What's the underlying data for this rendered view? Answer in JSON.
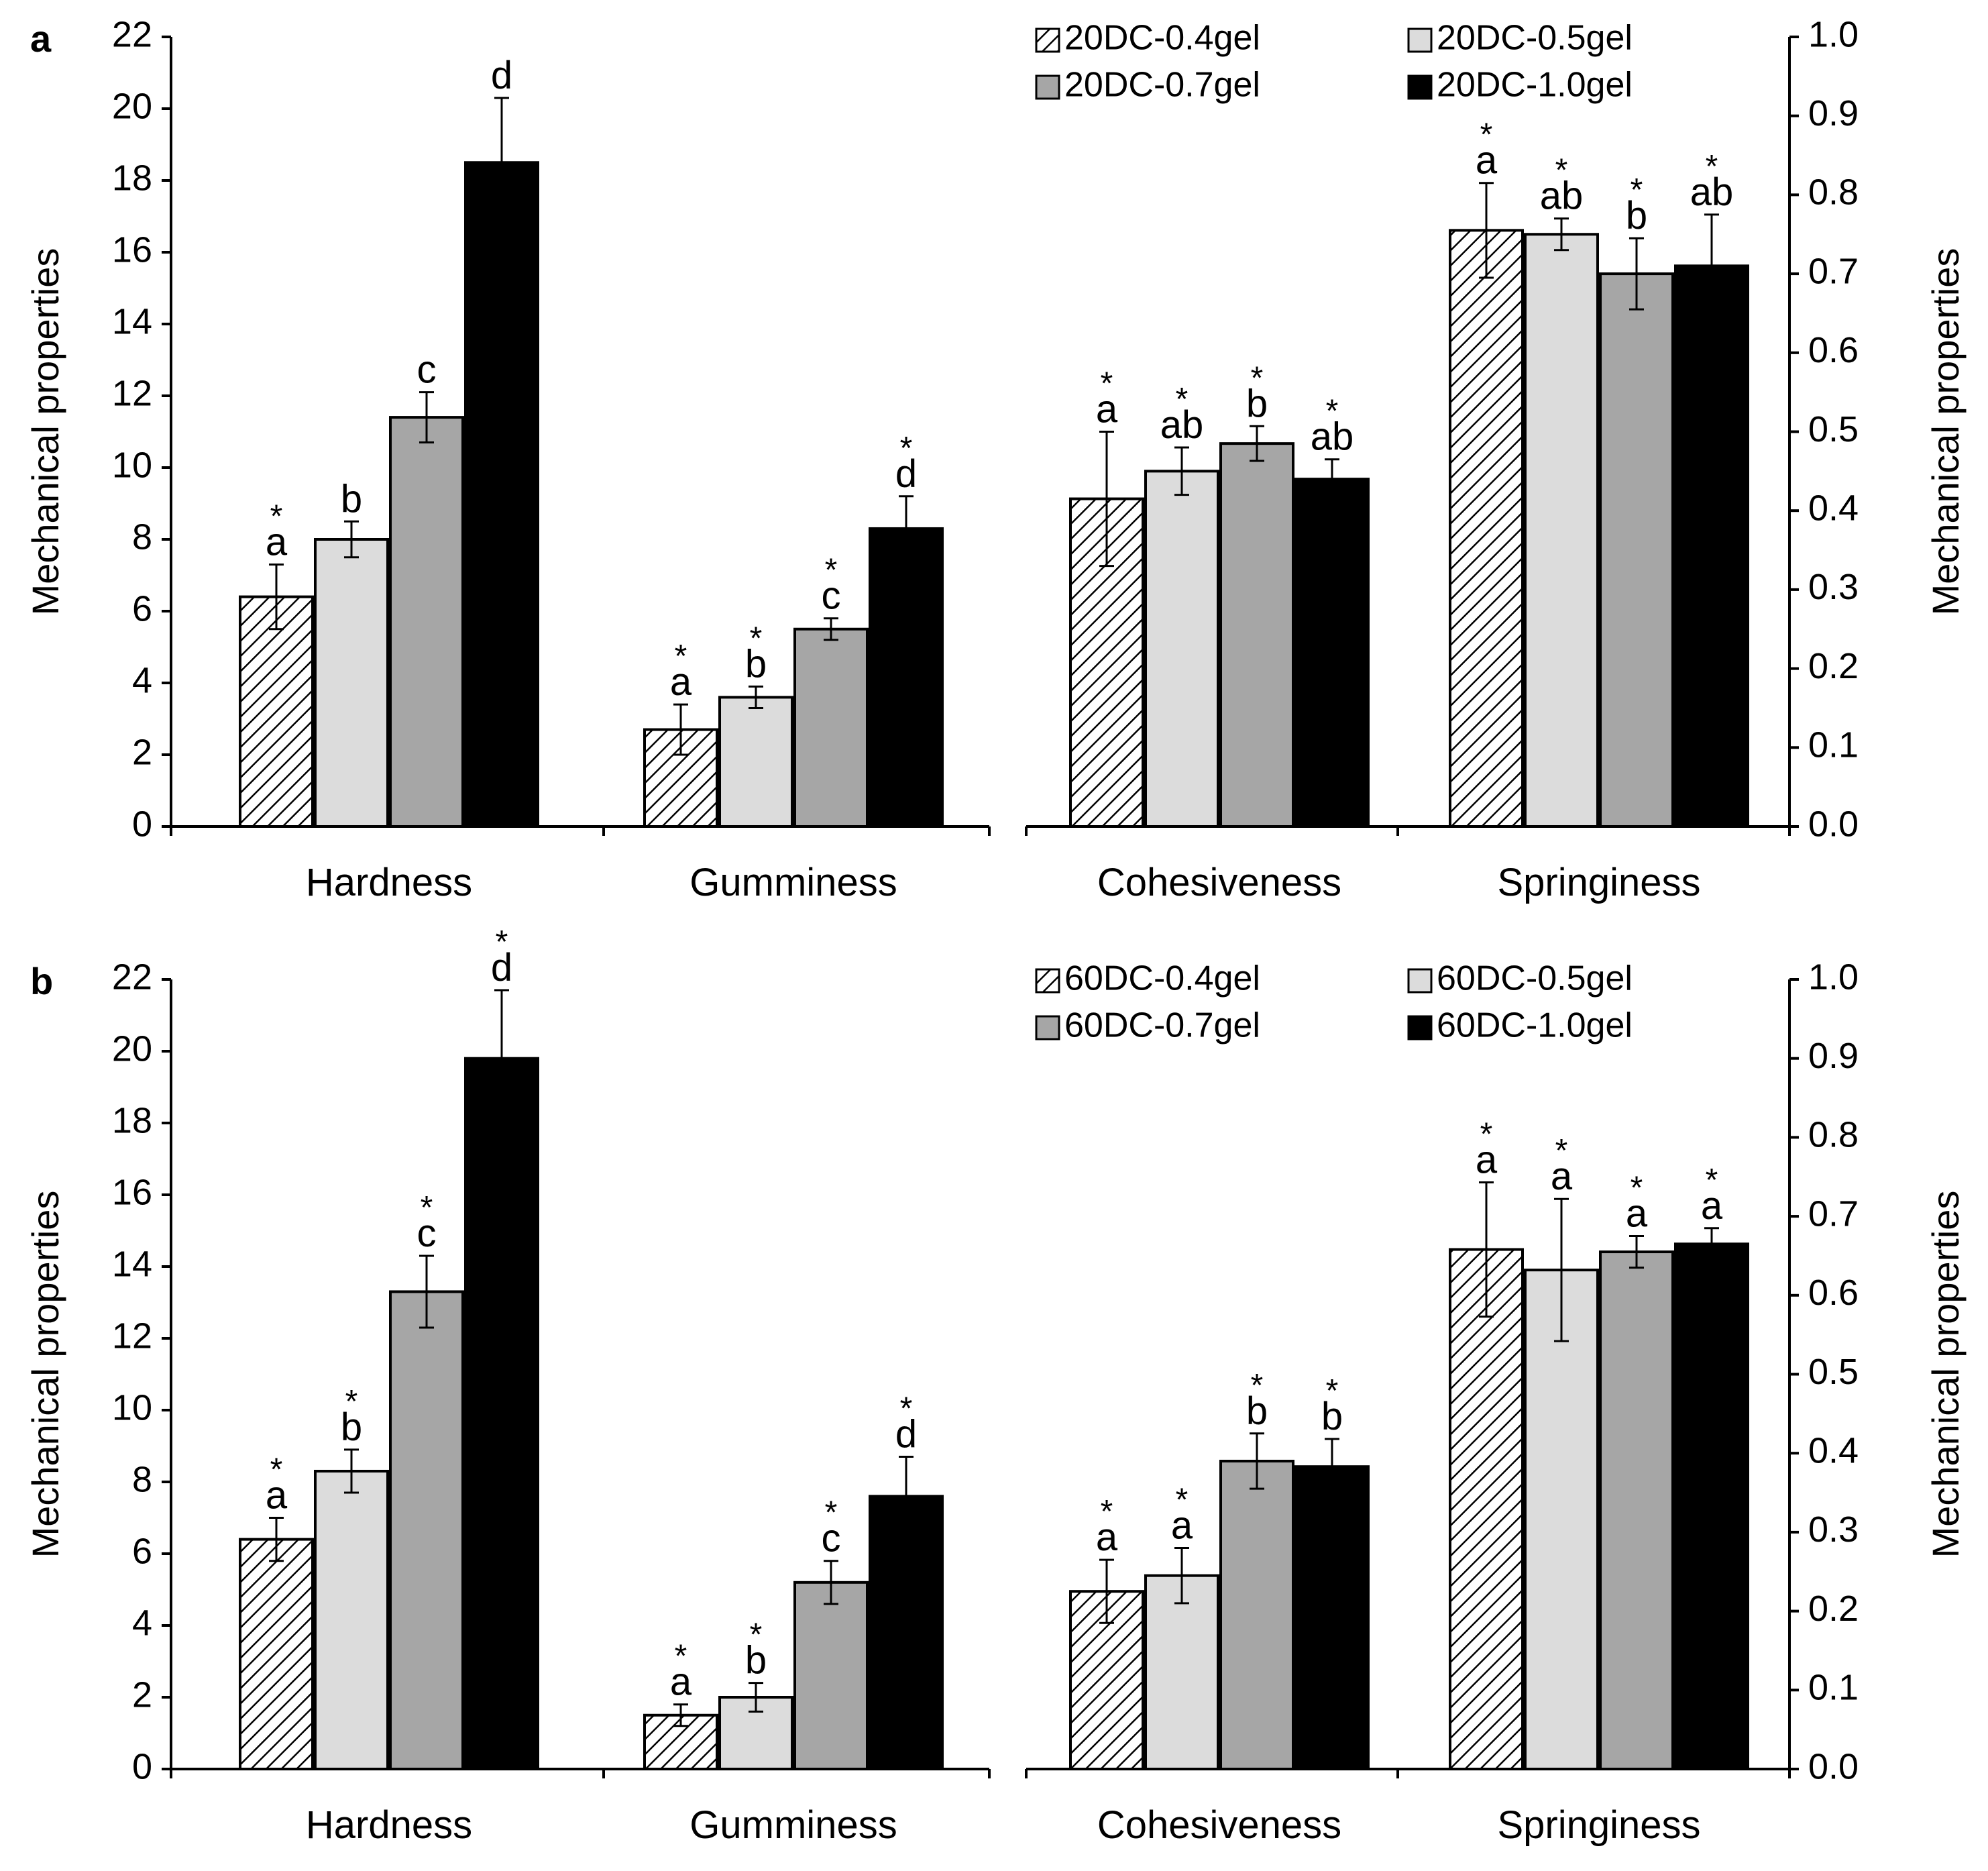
{
  "chart_data": [
    {
      "panel": "a",
      "type": "bar",
      "left_axis": {
        "ylabel": "Mechanical properties",
        "ylim": [
          0,
          22
        ],
        "ticks": [
          "0",
          "2",
          "4",
          "6",
          "8",
          "10",
          "12",
          "14",
          "16",
          "18",
          "20",
          "22"
        ]
      },
      "right_axis": {
        "ylabel": "Mechanical properties",
        "ylim": [
          0,
          1.0
        ],
        "ticks": [
          "0.0",
          "0.1",
          "0.2",
          "0.3",
          "0.4",
          "0.5",
          "0.6",
          "0.7",
          "0.8",
          "0.9",
          "1.0"
        ]
      },
      "legend": {
        "placement": "top-center",
        "entries": [
          "20DC-0.4gel",
          "20DC-0.5gel",
          "20DC-0.7gel",
          "20DC-1.0gel"
        ]
      },
      "groups": [
        {
          "category": "Hardness",
          "axis": "left",
          "values": [
            6.4,
            8.0,
            11.4,
            18.5
          ],
          "errors": [
            0.9,
            0.5,
            0.7,
            1.8
          ],
          "letters": [
            "a",
            "b",
            "c",
            "d"
          ],
          "stars": [
            true,
            false,
            false,
            false
          ]
        },
        {
          "category": "Gumminess",
          "axis": "left",
          "values": [
            2.7,
            3.6,
            5.5,
            8.3
          ],
          "errors": [
            0.7,
            0.3,
            0.3,
            0.9
          ],
          "letters": [
            "a",
            "b",
            "c",
            "d"
          ],
          "stars": [
            true,
            true,
            true,
            true
          ]
        },
        {
          "category": "Cohesiveness",
          "axis": "right",
          "values": [
            0.415,
            0.45,
            0.485,
            0.44
          ],
          "errors": [
            0.085,
            0.03,
            0.022,
            0.025
          ],
          "letters": [
            "a",
            "ab",
            "b",
            "ab"
          ],
          "stars": [
            true,
            true,
            true,
            true
          ]
        },
        {
          "category": "Springiness",
          "axis": "right",
          "values": [
            0.755,
            0.75,
            0.7,
            0.71
          ],
          "errors": [
            0.06,
            0.02,
            0.045,
            0.065
          ],
          "letters": [
            "a",
            "ab",
            "b",
            "ab"
          ],
          "stars": [
            true,
            true,
            true,
            true
          ]
        }
      ]
    },
    {
      "panel": "b",
      "type": "bar",
      "left_axis": {
        "ylabel": "Mechanical properties",
        "ylim": [
          0,
          22
        ],
        "ticks": [
          "0",
          "2",
          "4",
          "6",
          "8",
          "10",
          "12",
          "14",
          "16",
          "18",
          "20",
          "22"
        ]
      },
      "right_axis": {
        "ylabel": "Mechanical properties",
        "ylim": [
          0,
          1.0
        ],
        "ticks": [
          "0.0",
          "0.1",
          "0.2",
          "0.3",
          "0.4",
          "0.5",
          "0.6",
          "0.7",
          "0.8",
          "0.9",
          "1.0"
        ]
      },
      "legend": {
        "placement": "top-center",
        "entries": [
          "60DC-0.4gel",
          "60DC-0.5gel",
          "60DC-0.7gel",
          "60DC-1.0gel"
        ]
      },
      "groups": [
        {
          "category": "Hardness",
          "axis": "left",
          "values": [
            6.4,
            8.3,
            13.3,
            19.8
          ],
          "errors": [
            0.6,
            0.6,
            1.0,
            1.9
          ],
          "letters": [
            "a",
            "b",
            "c",
            "d"
          ],
          "stars": [
            true,
            true,
            true,
            true
          ]
        },
        {
          "category": "Gumminess",
          "axis": "left",
          "values": [
            1.5,
            2.0,
            5.2,
            7.6
          ],
          "errors": [
            0.3,
            0.4,
            0.6,
            1.1
          ],
          "letters": [
            "a",
            "b",
            "c",
            "d"
          ],
          "stars": [
            true,
            true,
            true,
            true
          ]
        },
        {
          "category": "Cohesiveness",
          "axis": "right",
          "values": [
            0.225,
            0.245,
            0.39,
            0.383
          ],
          "errors": [
            0.04,
            0.035,
            0.035,
            0.035
          ],
          "letters": [
            "a",
            "a",
            "b",
            "b"
          ],
          "stars": [
            true,
            true,
            true,
            true
          ]
        },
        {
          "category": "Springiness",
          "axis": "right",
          "values": [
            0.658,
            0.632,
            0.655,
            0.665
          ],
          "errors": [
            0.085,
            0.09,
            0.02,
            0.02
          ],
          "letters": [
            "a",
            "a",
            "a",
            "a"
          ],
          "stars": [
            true,
            true,
            true,
            true
          ]
        }
      ]
    }
  ]
}
